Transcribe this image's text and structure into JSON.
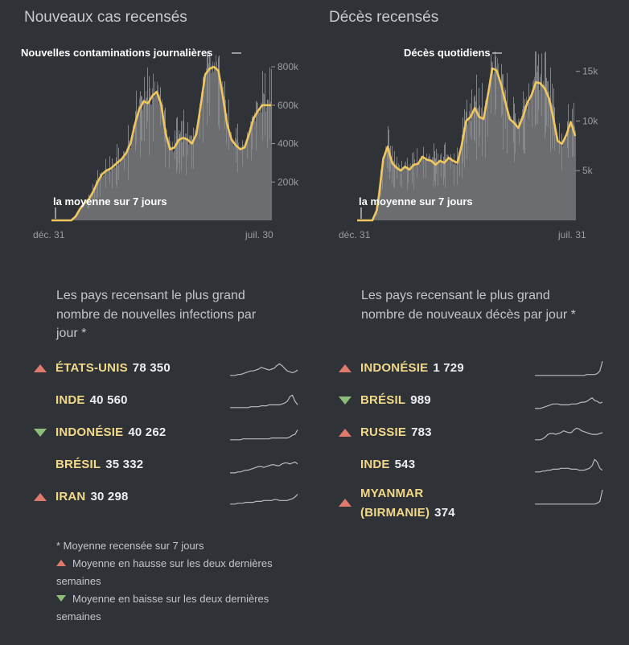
{
  "colors": {
    "bg": "#2f3237",
    "line": "#f0c75e",
    "area": "#6b6d70",
    "spike": "#8a8c90",
    "axis": "#9a9da2",
    "up": "#e07a6c",
    "down": "#8dbd79",
    "name": "#f2d98a"
  },
  "cases": {
    "title": "Nouveaux cas recensés",
    "daily_label": "Nouvelles contaminations journalières",
    "avg_label": "la moyenne sur 7 jours",
    "x_start": "déc. 31",
    "x_end": "juil. 30"
  },
  "deaths": {
    "title": "Décès recensés",
    "daily_label": "Décès quotidiens",
    "avg_label": "la moyenne sur 7 jours",
    "x_start": "déc. 31",
    "x_end": "juil. 31"
  },
  "chart_data": [
    {
      "type": "area",
      "title": "Nouveaux cas recensés",
      "series_labels": [
        "Nouvelles contaminations journalières",
        "la moyenne sur 7 jours"
      ],
      "xlabel": "",
      "ylabel": "",
      "ylim": [
        0,
        880000
      ],
      "x_tick_labels": [
        "déc. 31",
        "juil. 30"
      ],
      "y_ticks": [
        200000,
        400000,
        600000,
        800000
      ],
      "y_tick_labels": [
        "200k",
        "400k",
        "600k",
        "800k"
      ],
      "x": [
        0,
        3,
        6,
        9,
        11,
        13,
        15,
        17,
        19,
        21,
        23,
        25,
        27,
        28,
        30,
        32,
        34,
        36,
        38,
        40,
        42,
        44,
        46,
        48,
        50,
        52,
        54,
        56,
        58,
        60,
        62,
        64,
        66,
        68,
        70,
        72,
        74,
        76,
        78,
        80,
        82,
        84,
        86,
        88,
        90,
        92,
        94,
        96,
        98,
        100
      ],
      "values": [
        0,
        0,
        0,
        0,
        20000,
        60000,
        90000,
        110000,
        150000,
        200000,
        240000,
        260000,
        270000,
        280000,
        300000,
        320000,
        350000,
        400000,
        500000,
        580000,
        620000,
        610000,
        650000,
        670000,
        600000,
        450000,
        370000,
        380000,
        420000,
        430000,
        420000,
        400000,
        450000,
        600000,
        760000,
        790000,
        800000,
        780000,
        650000,
        500000,
        420000,
        390000,
        370000,
        380000,
        450000,
        530000,
        570000,
        600000,
        600000,
        600000
      ]
    },
    {
      "type": "area",
      "title": "Décès recensés",
      "series_labels": [
        "Décès quotidiens",
        "la moyenne sur 7 jours"
      ],
      "xlabel": "",
      "ylabel": "",
      "ylim": [
        0,
        17000
      ],
      "x_tick_labels": [
        "déc. 31",
        "juil. 31"
      ],
      "y_ticks": [
        5000,
        10000,
        15000
      ],
      "y_tick_labels": [
        "5k",
        "10k",
        "15k"
      ],
      "x": [
        0,
        4,
        7,
        9,
        10,
        12,
        14,
        16,
        18,
        20,
        22,
        24,
        26,
        28,
        30,
        32,
        34,
        36,
        38,
        40,
        42,
        44,
        46,
        48,
        50,
        52,
        54,
        56,
        58,
        60,
        62,
        64,
        66,
        68,
        70,
        72,
        74,
        76,
        78,
        80,
        82,
        84,
        86,
        88,
        90,
        92,
        94,
        96,
        98,
        100
      ],
      "values": [
        0,
        0,
        0,
        1000,
        2500,
        6200,
        7400,
        5800,
        5300,
        5000,
        5400,
        5100,
        5600,
        5700,
        6400,
        6100,
        6000,
        5600,
        6000,
        5800,
        6300,
        6000,
        5800,
        7600,
        10000,
        10400,
        11300,
        10400,
        10200,
        12600,
        15300,
        15100,
        13700,
        11900,
        10200,
        9800,
        9300,
        10400,
        11800,
        12600,
        13900,
        13800,
        13300,
        12300,
        10300,
        8000,
        7700,
        8600,
        9900,
        8500
      ]
    }
  ],
  "cases_rank": {
    "title": "Les pays recensant le plus grand nombre de nouvelles infections par jour *",
    "rows": [
      {
        "trend": "up",
        "name": "ÉTATS-UNIS",
        "value": "78 350",
        "spark": [
          2,
          2,
          2,
          3,
          3,
          4,
          5,
          6,
          7,
          7,
          8,
          9,
          11,
          10,
          9,
          8,
          9,
          10,
          13,
          15,
          13,
          10,
          7,
          6,
          5,
          6,
          8
        ]
      },
      {
        "trend": "none",
        "name": "INDE",
        "value": "40 560",
        "spark": [
          2,
          2,
          2,
          2,
          2,
          2,
          2,
          2,
          3,
          3,
          3,
          3,
          4,
          4,
          4,
          5,
          5,
          5,
          5,
          5,
          6,
          7,
          9,
          14,
          16,
          9,
          5
        ]
      },
      {
        "trend": "down",
        "name": "INDONÉSIE",
        "value": "40 262",
        "spark": [
          2,
          2,
          2,
          2,
          2,
          3,
          3,
          3,
          3,
          3,
          3,
          3,
          3,
          3,
          3,
          3,
          4,
          4,
          4,
          4,
          4,
          4,
          4,
          5,
          7,
          8,
          13
        ]
      },
      {
        "trend": "none",
        "name": "BRÉSIL",
        "value": "35 332",
        "spark": [
          1,
          1,
          1,
          2,
          2,
          3,
          4,
          4,
          5,
          6,
          7,
          8,
          8,
          7,
          8,
          9,
          10,
          10,
          9,
          9,
          11,
          12,
          12,
          11,
          12,
          13,
          11
        ]
      },
      {
        "trend": "up",
        "name": "IRAN",
        "value": "30 298",
        "spark": [
          2,
          2,
          2,
          3,
          3,
          3,
          4,
          4,
          4,
          4,
          5,
          5,
          5,
          6,
          6,
          6,
          6,
          7,
          7,
          6,
          6,
          6,
          6,
          7,
          8,
          10,
          13
        ]
      }
    ]
  },
  "deaths_rank": {
    "title": "Les pays recensant le plus grand nombre de nouveaux décès par jour *",
    "rows": [
      {
        "trend": "up",
        "name": "INDONÉSIE",
        "value": "1 729",
        "spark": [
          2,
          2,
          2,
          2,
          2,
          2,
          2,
          2,
          2,
          2,
          2,
          2,
          2,
          2,
          2,
          2,
          2,
          2,
          2,
          2,
          3,
          3,
          3,
          3,
          4,
          7,
          18
        ]
      },
      {
        "trend": "down",
        "name": "BRÉSIL",
        "value": "989",
        "spark": [
          1,
          1,
          1,
          2,
          3,
          4,
          5,
          6,
          6,
          6,
          5,
          5,
          5,
          5,
          6,
          6,
          6,
          7,
          8,
          8,
          9,
          11,
          13,
          10,
          9,
          7,
          8
        ]
      },
      {
        "trend": "up",
        "name": "RUSSIE",
        "value": "783",
        "spark": [
          2,
          2,
          2,
          3,
          5,
          8,
          9,
          9,
          8,
          9,
          10,
          12,
          11,
          10,
          10,
          13,
          15,
          14,
          12,
          11,
          10,
          9,
          8,
          8,
          8,
          9,
          10
        ]
      },
      {
        "trend": "none",
        "name": "INDE",
        "value": "543",
        "spark": [
          2,
          2,
          2,
          3,
          3,
          4,
          4,
          5,
          5,
          5,
          6,
          6,
          6,
          6,
          5,
          5,
          5,
          4,
          4,
          4,
          5,
          6,
          9,
          16,
          13,
          6,
          4
        ]
      },
      {
        "trend": "up",
        "name": "MYANMAR",
        "name2": "(BIRMANIE)",
        "value": "374",
        "spark": [
          2,
          2,
          2,
          2,
          2,
          2,
          2,
          2,
          2,
          2,
          2,
          2,
          2,
          2,
          2,
          2,
          2,
          2,
          2,
          2,
          2,
          2,
          2,
          2,
          3,
          5,
          18
        ]
      }
    ]
  },
  "legend": {
    "note": "* Moyenne recensée sur 7 jours",
    "up": "Moyenne en hausse sur les deux dernières semaines",
    "down": "Moyenne en baisse sur les deux dernières semaines"
  }
}
